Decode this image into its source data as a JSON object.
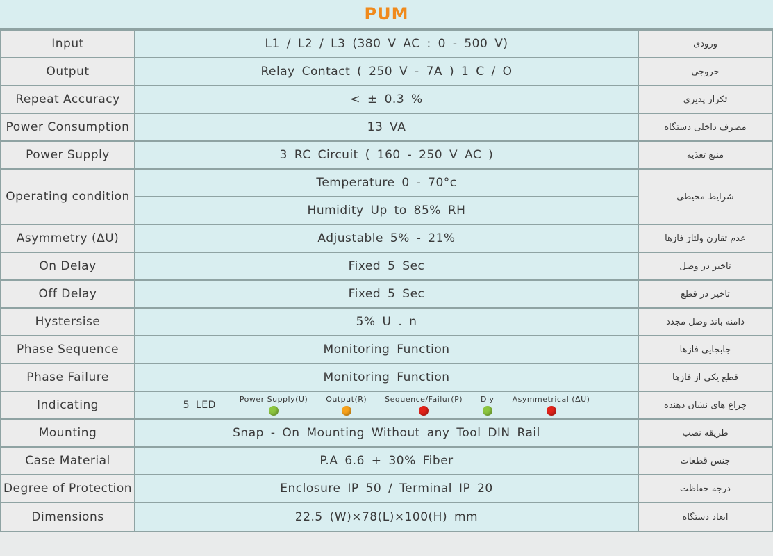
{
  "title": "PUM",
  "colors": {
    "title": "#f08a1c",
    "middle_bg": "#d9eef0",
    "side_bg": "#ececec",
    "border": "#8fa3a3"
  },
  "rows": [
    {
      "en": "Input",
      "value": "L1 / L2 / L3   (380 V AC : 0 - 500 V)",
      "fa": "ورودی"
    },
    {
      "en": "Output",
      "value": "Relay Contact ( 250 V - 7A )      1  C / O",
      "fa": "خروجی"
    },
    {
      "en": "Repeat Accuracy",
      "value": "<  ± 0.3 %",
      "fa": "تکرار پذیری"
    },
    {
      "en": "Power Consumption",
      "value": "13 VA",
      "fa": "مصرف داخلی دستگاه"
    },
    {
      "en": "Power Supply",
      "value": "3 RC Circuit    ( 160 - 250 V AC )",
      "fa": "منبع تغذیه"
    },
    {
      "en": "Operating condition",
      "values": [
        "Temperature        0 - 70°c",
        "Humidity       Up to 85% RH"
      ],
      "fa": "شرایط محیطی"
    },
    {
      "en": "Asymmetry (ΔU)",
      "value": "Adjustable  5% - 21%",
      "fa": "عدم تقارن ولتاژ فازها"
    },
    {
      "en": "On Delay",
      "value": "Fixed  5 Sec",
      "fa": "تاخیر در وصل"
    },
    {
      "en": "Off Delay",
      "value": "Fixed  5 Sec",
      "fa": "تاخیر در قطع"
    },
    {
      "en": "Hystersise",
      "value": "5%  U . n",
      "fa": "دامنه باند وصل مجدد"
    },
    {
      "en": "Phase Sequence",
      "value": "Monitoring Function",
      "fa": "جابجایی فازها"
    },
    {
      "en": "Phase Failure",
      "value": "Monitoring Function",
      "fa": "قطع یکی از فازها"
    },
    {
      "en": "Indicating",
      "led_count": "5 LED",
      "leds": [
        {
          "label": "Power Supply(U)",
          "color": "#8cc63f"
        },
        {
          "label": "Output(R)",
          "color": "#f7a21b"
        },
        {
          "label": "Sequence/Failur(P)",
          "color": "#e2231a"
        },
        {
          "label": "Dly",
          "color": "#8cc63f"
        },
        {
          "label": "Asymmetrical (ΔU)",
          "color": "#e2231a"
        }
      ],
      "fa": "چراغ های نشان دهنده"
    },
    {
      "en": "Mounting",
      "value": "Snap - On Mounting Without any Tool DIN Rail",
      "fa": "طریقه نصب"
    },
    {
      "en": "Case Material",
      "value": "P.A 6.6 + 30% Fiber",
      "fa": "جنس قطعات"
    },
    {
      "en": "Degree of Protection",
      "value": "Enclosure   IP 50   /   Terminal   IP 20",
      "fa": "درجه حفاظت"
    },
    {
      "en": "Dimensions",
      "value": "22.5 (W)×78(L)×100(H) mm",
      "fa": "ابعاد دستگاه"
    }
  ]
}
